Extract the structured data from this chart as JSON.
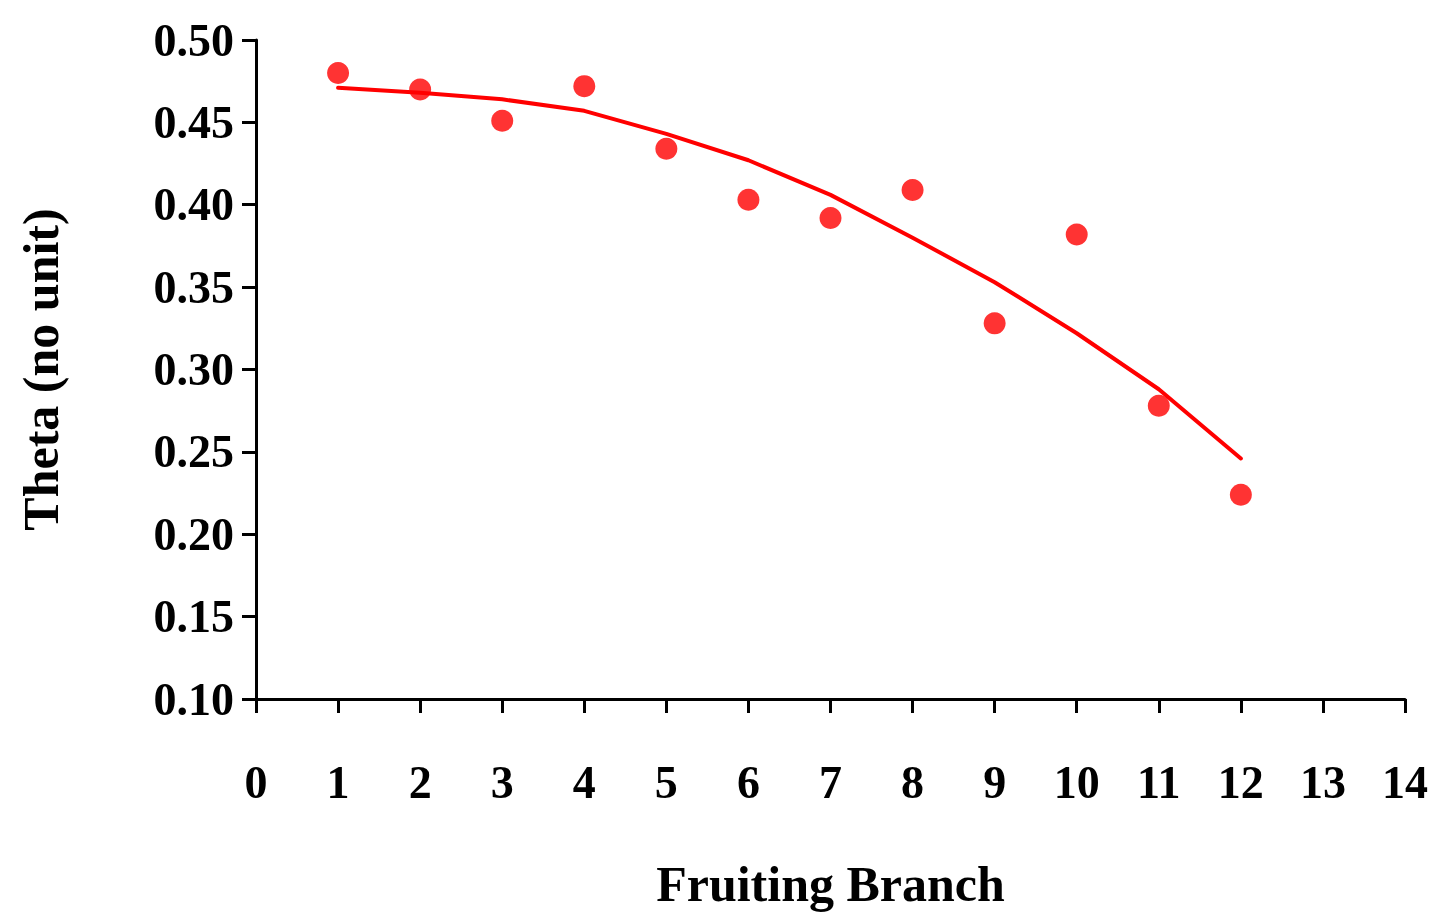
{
  "chart_data": {
    "type": "scatter",
    "xlabel": "Fruiting Branch",
    "ylabel": "Theta (no unit)",
    "xlim": [
      0,
      14
    ],
    "xticks": [
      0,
      1,
      2,
      3,
      4,
      5,
      6,
      7,
      8,
      9,
      10,
      11,
      12,
      13,
      14
    ],
    "ylim": [
      0.1,
      0.5
    ],
    "yticks": [
      {
        "value": 0.1,
        "label": "0.10"
      },
      0.15,
      {
        "value": 0.2,
        "label": "0.20"
      },
      0.25,
      {
        "value": 0.3,
        "label": "0.30"
      },
      0.35,
      {
        "value": 0.4,
        "label": "0.40"
      },
      0.45,
      {
        "value": 0.5,
        "label": "0.50"
      }
    ],
    "grid": false,
    "series": [
      {
        "marker": "circle",
        "color": "#ff0000",
        "x": [
          1,
          2,
          3,
          4,
          5,
          6,
          7,
          8,
          9,
          10,
          11,
          12
        ],
        "values": [
          0.48,
          0.47,
          0.451,
          0.472,
          0.434,
          0.403,
          0.392,
          0.409,
          0.328,
          0.382,
          0.278,
          0.224
        ]
      },
      {
        "type": "line",
        "marker": "none",
        "line_style": "solid",
        "color": "#ff0000",
        "x": [
          1,
          2,
          3,
          4,
          5,
          6,
          7,
          8,
          9,
          10,
          11,
          12
        ],
        "values": [
          0.471,
          0.468,
          0.464,
          0.457,
          0.443,
          0.427,
          0.406,
          0.38,
          0.353,
          0.322,
          0.288,
          0.246
        ]
      }
    ]
  }
}
